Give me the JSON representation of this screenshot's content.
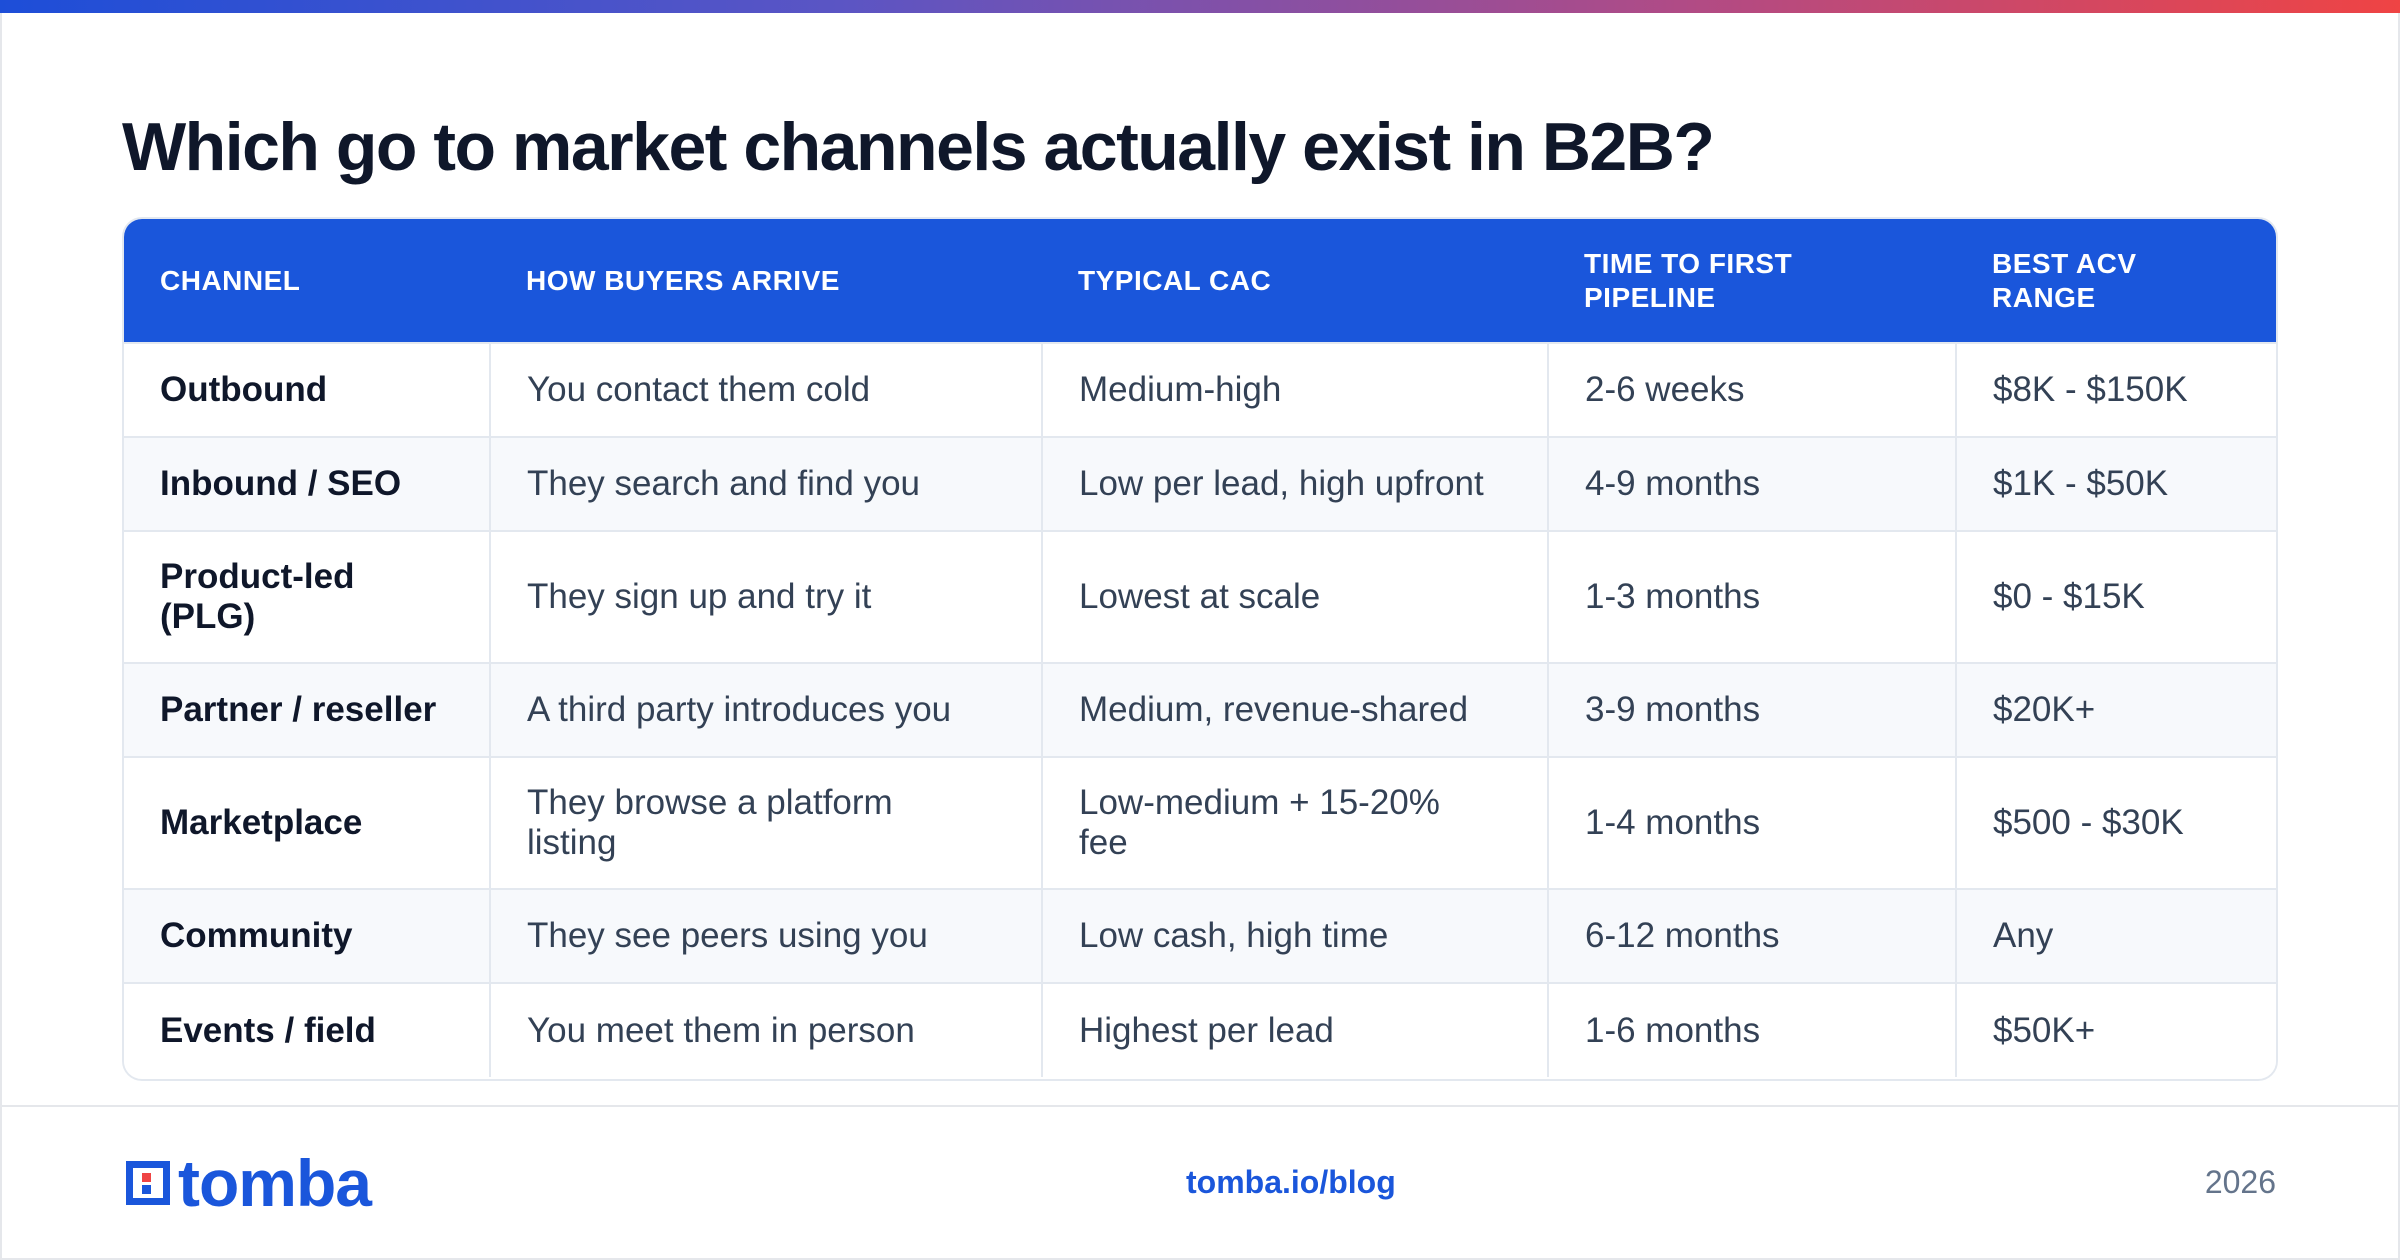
{
  "title": "Which go to market channels actually exist in B2B?",
  "colors": {
    "accent": "#1a56db",
    "text": "#0f172a",
    "muted": "#64748b",
    "gradient_end": "#ef4444"
  },
  "table": {
    "headers": [
      "CHANNEL",
      "HOW BUYERS ARRIVE",
      "TYPICAL CAC",
      "TIME TO FIRST PIPELINE",
      "BEST ACV RANGE"
    ],
    "rows": [
      [
        "Outbound",
        "You contact them cold",
        "Medium-high",
        "2-6 weeks",
        "$8K - $150K"
      ],
      [
        "Inbound / SEO",
        "They search and find you",
        "Low per lead, high upfront",
        "4-9 months",
        "$1K - $50K"
      ],
      [
        "Product-led (PLG)",
        "They sign up and try it",
        "Lowest at scale",
        "1-3 months",
        "$0 - $15K"
      ],
      [
        "Partner / reseller",
        "A third party introduces you",
        "Medium, revenue-shared",
        "3-9 months",
        "$20K+"
      ],
      [
        "Marketplace",
        "They browse a platform listing",
        "Low-medium + 15-20% fee",
        "1-4 months",
        "$500 - $30K"
      ],
      [
        "Community",
        "They see peers using you",
        "Low cash, high time",
        "6-12 months",
        "Any"
      ],
      [
        "Events / field",
        "You meet them in person",
        "Highest per lead",
        "1-6 months",
        "$50K+"
      ]
    ]
  },
  "footer": {
    "logo_text": "tomba",
    "logo_icon": "tomba-logo-icon",
    "link": "tomba.io/blog",
    "year": "2026"
  }
}
